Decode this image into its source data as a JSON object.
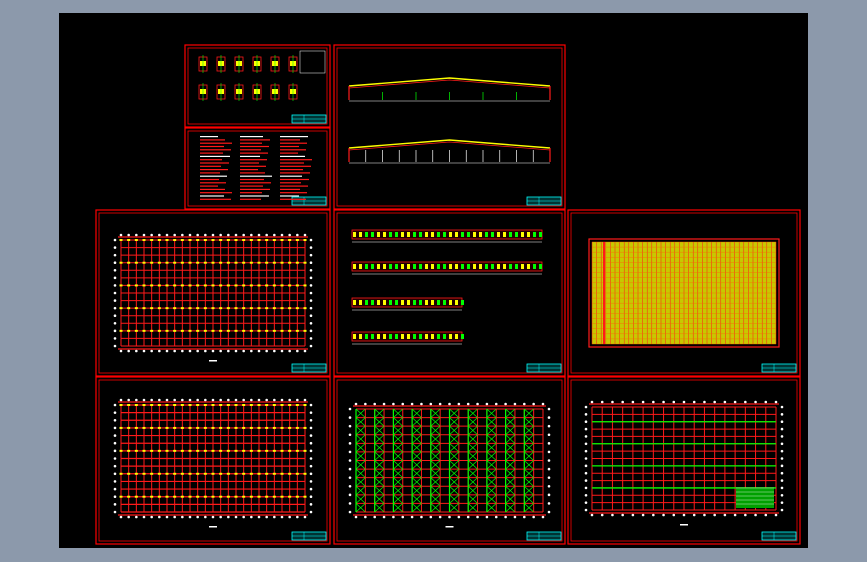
{
  "viewport": {
    "background": "#8c99ab",
    "canvas": "#000000"
  },
  "colors": {
    "frame": "#ff0000",
    "grid": "#ff1a1a",
    "marker": "#ffff00",
    "bracing": "#00ff00",
    "title_block": "#00ffff",
    "axis_bubble": "#ffffff"
  },
  "sheets": [
    {
      "kind": "details"
    },
    {
      "kind": "notes"
    },
    {
      "kind": "frame-elevations"
    },
    {
      "kind": "foundation-plan"
    },
    {
      "kind": "wall-elevations"
    },
    {
      "kind": "roof-panel-plan"
    },
    {
      "kind": "column-plan"
    },
    {
      "kind": "bracing-plan"
    },
    {
      "kind": "purlin-plan"
    }
  ]
}
